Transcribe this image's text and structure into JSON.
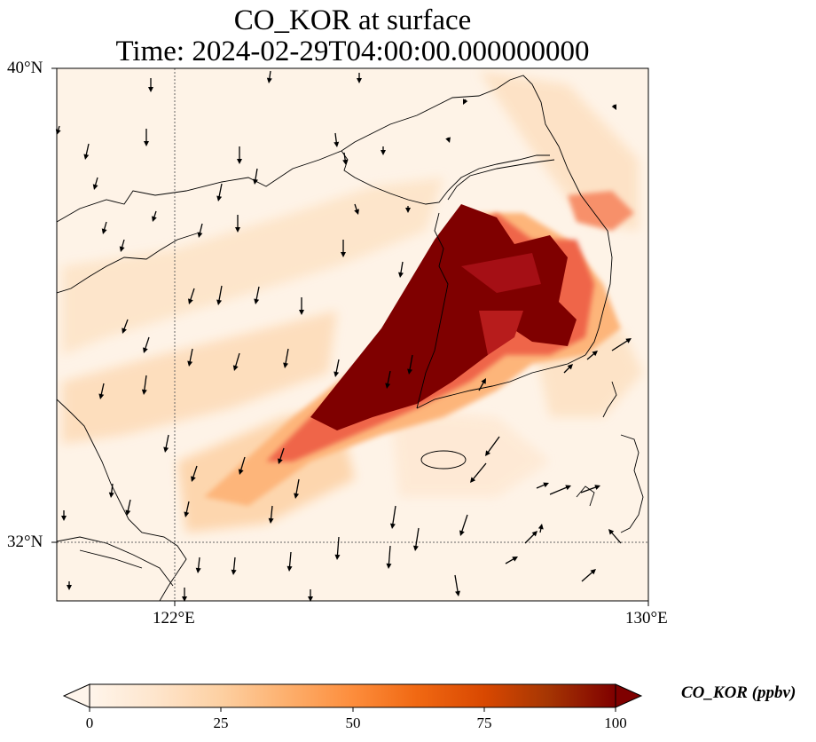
{
  "title": {
    "line1": "CO_KOR at surface",
    "line2": "Time: 2024-02-29T04:00:00.000000000"
  },
  "axes": {
    "lat_labels": [
      "40°N",
      "32°N"
    ],
    "lon_labels": [
      "122°E",
      "130°E"
    ],
    "lat_range": [
      31,
      40
    ],
    "lon_range": [
      120,
      130
    ],
    "gridlines_lat": [
      32
    ],
    "gridlines_lon": [
      122
    ]
  },
  "colorbar": {
    "label": "CO_KOR (ppbv)",
    "ticks": [
      "0",
      "25",
      "50",
      "75",
      "100"
    ],
    "min": 0,
    "max": 100,
    "extend": "both",
    "colormap": [
      "#fff5eb",
      "#fee6ce",
      "#fdd0a2",
      "#fdae6b",
      "#fd8d3c",
      "#f16913",
      "#d94801",
      "#a63603",
      "#7f0000"
    ]
  },
  "colors": {
    "land_outline": "#000000",
    "gridline": "#666666",
    "arrow": "#000000"
  }
}
